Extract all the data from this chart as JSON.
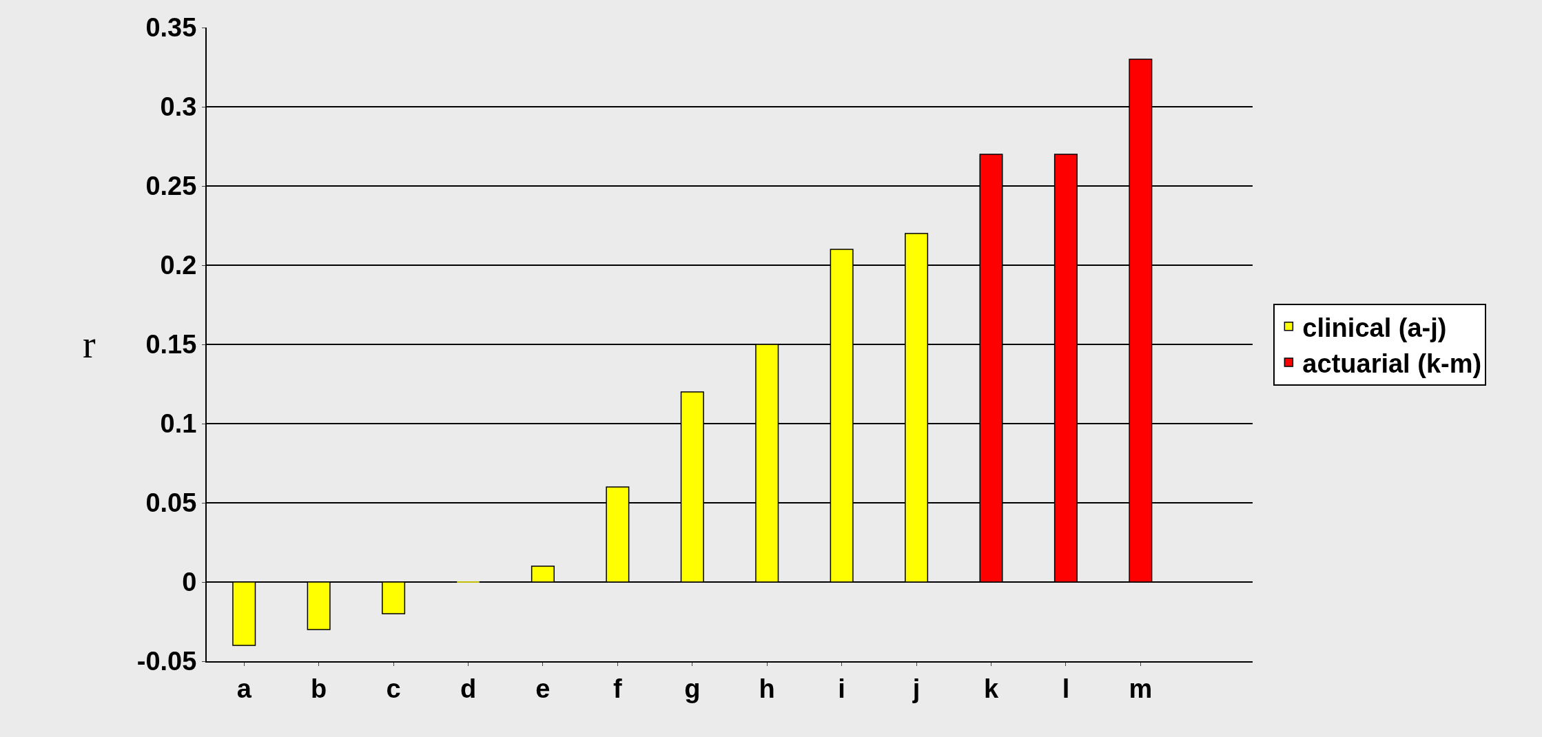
{
  "chart_data": {
    "type": "bar",
    "ylabel": "r",
    "categories": [
      "a",
      "b",
      "c",
      "d",
      "e",
      "f",
      "g",
      "h",
      "i",
      "j",
      "k",
      "l",
      "m"
    ],
    "series": [
      {
        "name": "clinical (a-j)",
        "color": "#ffff00",
        "values": [
          -0.04,
          -0.03,
          -0.02,
          0,
          0.01,
          0.06,
          0.12,
          0.15,
          0.21,
          0.22,
          null,
          null,
          null
        ]
      },
      {
        "name": "actuarial (k-m)",
        "color": "#ff0000",
        "values": [
          null,
          null,
          null,
          null,
          null,
          null,
          null,
          null,
          null,
          null,
          0.27,
          0.27,
          0.33
        ]
      }
    ],
    "ylim": [
      -0.05,
      0.35
    ],
    "yticks": [
      {
        "value": -0.05,
        "label": "-0.05"
      },
      0,
      0.05,
      0.1,
      0.15,
      0.2,
      0.25,
      0.3,
      0.35
    ],
    "grid": "y",
    "legend": "right"
  }
}
